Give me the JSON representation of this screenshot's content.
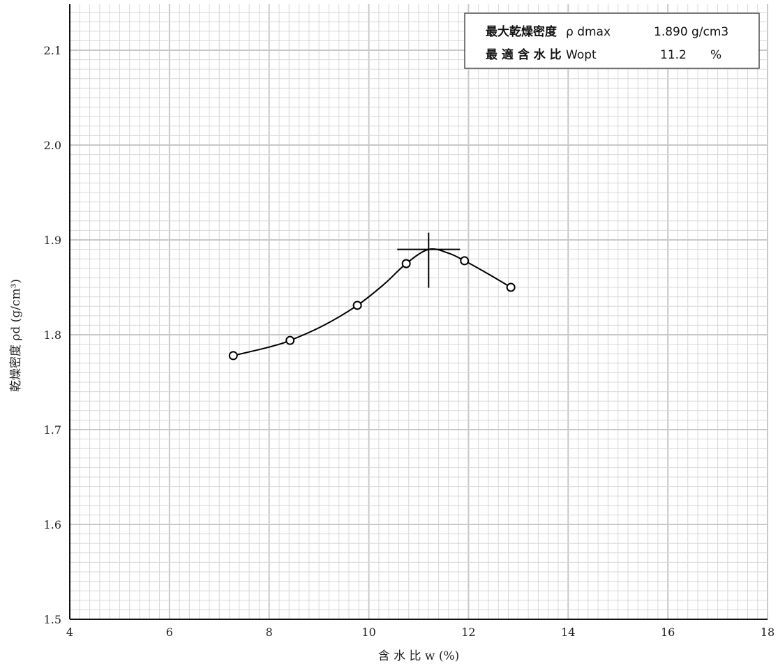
{
  "chart_data": {
    "type": "scatter",
    "xlabel": "含 水 比 w (%)",
    "ylabel": "乾燥密度 ρd (g/cm³)",
    "xlim": [
      4,
      18
    ],
    "ylim": [
      1.5,
      2.15
    ],
    "x_ticks": [
      4,
      6,
      8,
      10,
      12,
      14,
      16,
      18
    ],
    "y_ticks": [
      1.5,
      1.6,
      1.7,
      1.8,
      1.9,
      2.0,
      2.1
    ],
    "x_tick_labels": [
      "4",
      "6",
      "8",
      "10",
      "12",
      "14",
      "16",
      "18"
    ],
    "y_tick_labels": [
      "1.5",
      "1.6",
      "1.7",
      "1.8",
      "1.9",
      "2.0",
      "2.1"
    ],
    "grid": true,
    "points": [
      {
        "x": 7.28,
        "y": 1.778
      },
      {
        "x": 8.42,
        "y": 1.794
      },
      {
        "x": 9.77,
        "y": 1.831
      },
      {
        "x": 10.75,
        "y": 1.875
      },
      {
        "x": 11.92,
        "y": 1.878
      },
      {
        "x": 12.85,
        "y": 1.85
      }
    ],
    "curve": [
      {
        "x": 7.28,
        "y": 1.778
      },
      {
        "x": 8.0,
        "y": 1.787
      },
      {
        "x": 8.42,
        "y": 1.794
      },
      {
        "x": 9.1,
        "y": 1.81
      },
      {
        "x": 9.77,
        "y": 1.831
      },
      {
        "x": 10.3,
        "y": 1.853
      },
      {
        "x": 10.75,
        "y": 1.875
      },
      {
        "x": 11.2,
        "y": 1.89
      },
      {
        "x": 11.6,
        "y": 1.886
      },
      {
        "x": 11.92,
        "y": 1.878
      },
      {
        "x": 12.4,
        "y": 1.864
      },
      {
        "x": 12.85,
        "y": 1.85
      }
    ],
    "optimum": {
      "x": 11.2,
      "y": 1.89
    },
    "info_box": {
      "line1_label": "最大乾燥密度",
      "line1_symbol": "ρ dmax",
      "line1_value": "1.890",
      "line1_unit": "g/cm3",
      "line2_label": "最 適 含 水 比",
      "line2_symbol": "Wopt",
      "line2_value": "11.2",
      "line2_unit": "%"
    }
  }
}
